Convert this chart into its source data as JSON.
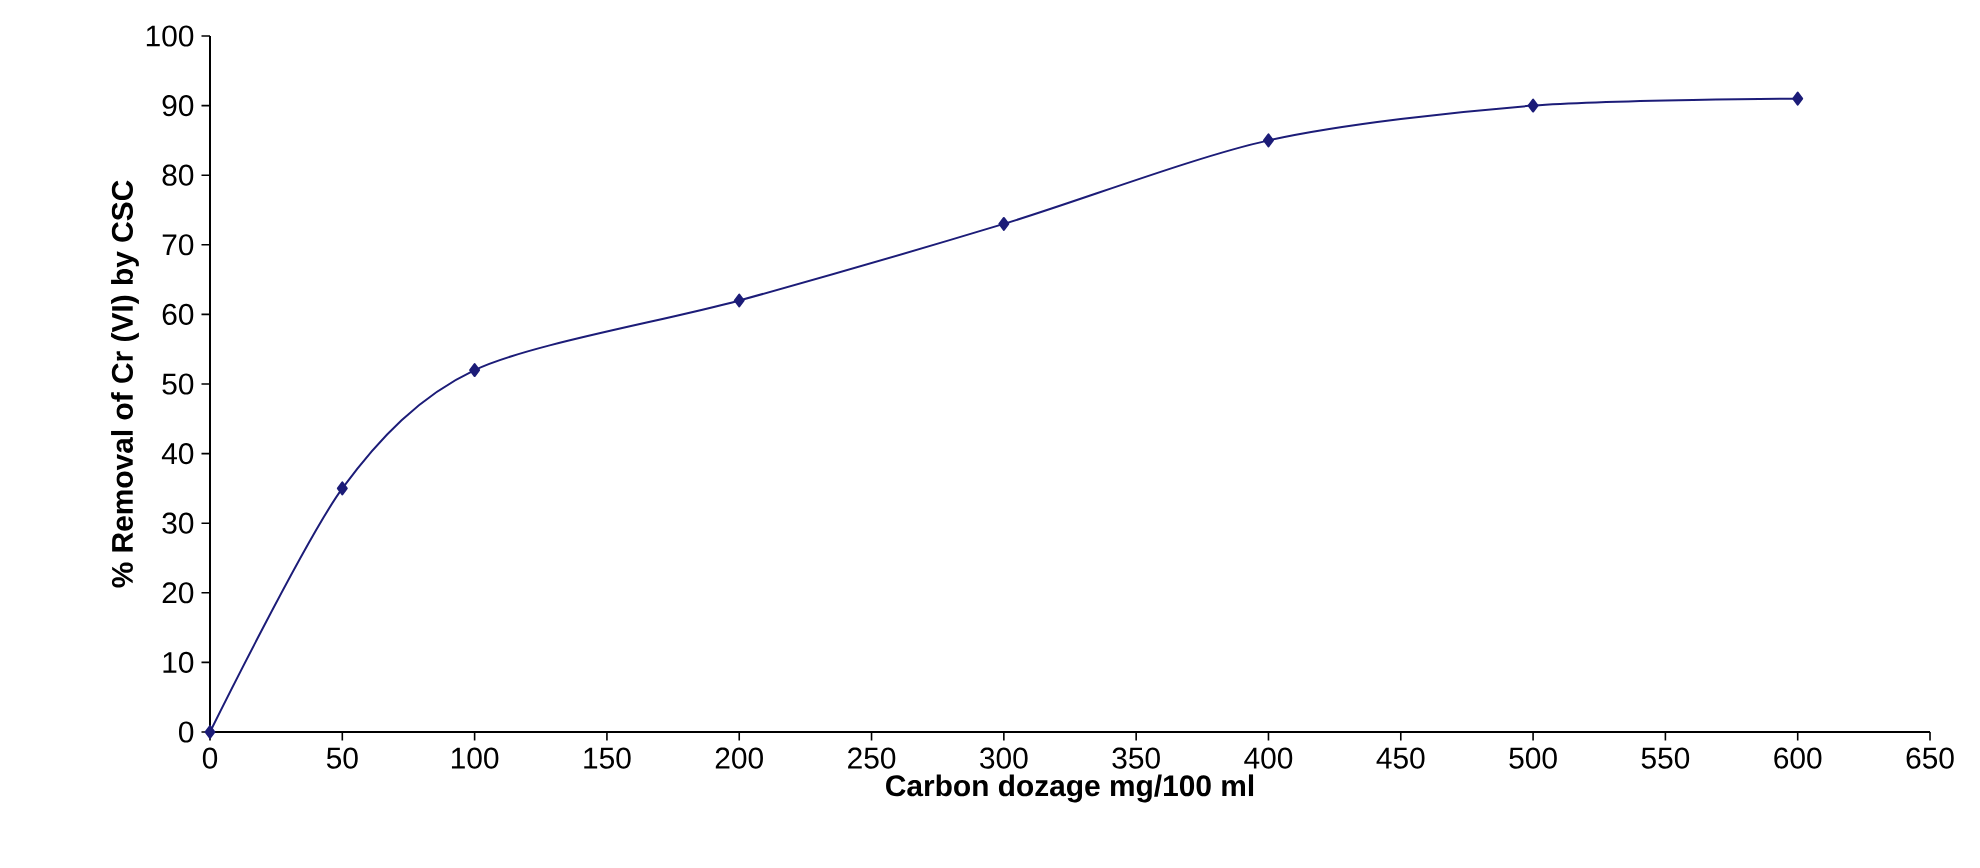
{
  "chart_data": {
    "type": "line",
    "xlabel": "Carbon dozage mg/100 ml",
    "ylabel": "% Removal of Cr (VI) by CSC",
    "x": [
      0,
      50,
      100,
      200,
      300,
      400,
      500,
      600
    ],
    "series": [
      {
        "color": "#1c1c78",
        "values": [
          0,
          35,
          52,
          62,
          73,
          85,
          90,
          91
        ]
      }
    ],
    "xlim": [
      0,
      650
    ],
    "ylim": [
      0,
      100
    ],
    "xticks": [
      0,
      50,
      100,
      150,
      200,
      250,
      300,
      350,
      400,
      450,
      500,
      550,
      600,
      650
    ],
    "yticks": [
      0,
      10,
      20,
      30,
      40,
      50,
      60,
      70,
      80,
      90,
      100
    ],
    "grid": false,
    "marker": "diamond",
    "line_style": "solid"
  }
}
